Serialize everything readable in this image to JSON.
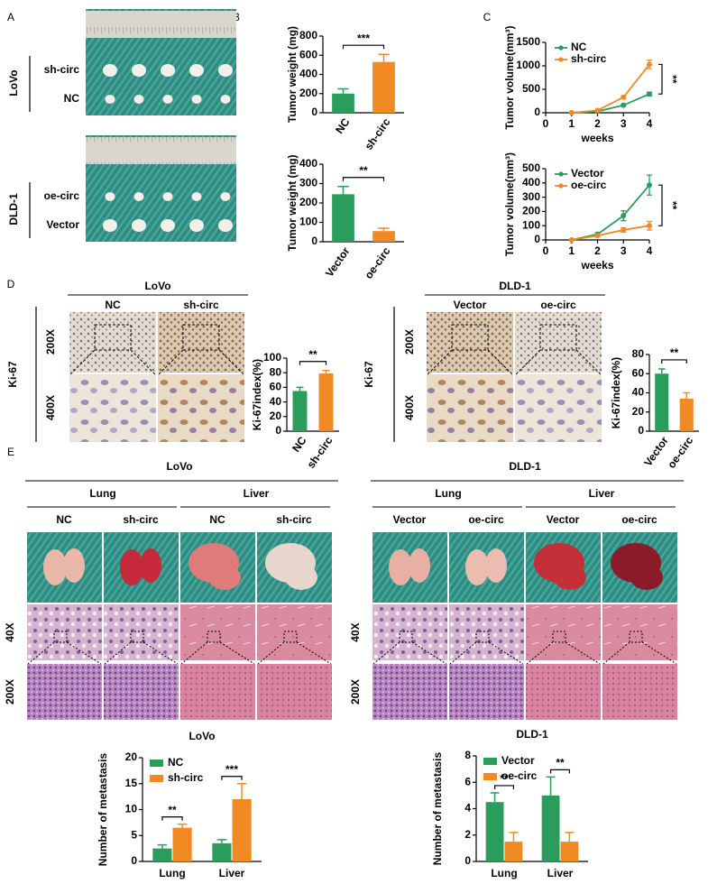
{
  "panel_labels": [
    "A",
    "B",
    "C",
    "D",
    "E"
  ],
  "panel_a": [
    {
      "line": "LoVo",
      "groups": [
        "sh-circ",
        "NC"
      ]
    },
    {
      "line": "DLD-1",
      "groups": [
        "oe-circ",
        "Vector"
      ]
    }
  ],
  "panel_d": [
    {
      "line": "LoVo",
      "groups": [
        "NC",
        "sh-circ"
      ],
      "stain": "Ki-67",
      "magnifications": [
        "200X",
        "400X"
      ]
    },
    {
      "line": "DLD-1",
      "groups": [
        "Vector",
        "oe-circ"
      ],
      "stain": "Ki-67",
      "magnifications": [
        "200X",
        "400X"
      ]
    }
  ],
  "panel_e": [
    {
      "line": "LoVo",
      "organs": [
        {
          "name": "Lung",
          "groups": [
            "NC",
            "sh-circ"
          ]
        },
        {
          "name": "Liver",
          "groups": [
            "NC",
            "sh-circ"
          ]
        }
      ],
      "magnifications": [
        "40X",
        "200X"
      ]
    },
    {
      "line": "DLD-1",
      "organs": [
        {
          "name": "Lung",
          "groups": [
            "Vector",
            "oe-circ"
          ]
        },
        {
          "name": "Liver",
          "groups": [
            "Vector",
            "oe-circ"
          ]
        }
      ],
      "magnifications": [
        "40X",
        "200X"
      ]
    }
  ],
  "chart_data": [
    {
      "type": "bar",
      "ylabel": "Tumor weight (mg)",
      "categories": [
        "NC",
        "sh-circ"
      ],
      "values": [
        200,
        530
      ],
      "errors": [
        50,
        80
      ],
      "colors": [
        "#2a9d5c",
        "#f28a24"
      ],
      "ylim": [
        0,
        800
      ],
      "yticks": [
        0,
        200,
        400,
        600,
        800
      ],
      "significance": "***"
    },
    {
      "type": "bar",
      "ylabel": "Tumor weight (mg)",
      "categories": [
        "Vector",
        "oe-circ"
      ],
      "values": [
        245,
        55
      ],
      "errors": [
        40,
        15
      ],
      "colors": [
        "#2a9d5c",
        "#f28a24"
      ],
      "ylim": [
        0,
        400
      ],
      "yticks": [
        0,
        100,
        200,
        300,
        400
      ],
      "significance": "**"
    },
    {
      "type": "line",
      "ylabel": "Tumor volume(mm³)",
      "xlabel": "weeks",
      "x": [
        1,
        2,
        3,
        4
      ],
      "xlim": [
        0,
        4
      ],
      "xticks": [
        0,
        1,
        2,
        3,
        4
      ],
      "ylim": [
        0,
        1500
      ],
      "yticks": [
        0,
        500,
        1000,
        1500
      ],
      "series": [
        {
          "name": "NC",
          "color": "#2a9d5c",
          "values": [
            0,
            30,
            160,
            400
          ],
          "errors": [
            0,
            5,
            20,
            40
          ]
        },
        {
          "name": "sh-circ",
          "color": "#f28a24",
          "values": [
            0,
            50,
            330,
            1030
          ],
          "errors": [
            0,
            10,
            30,
            90
          ]
        }
      ],
      "significance": "**"
    },
    {
      "type": "line",
      "ylabel": "Tumor volume(mm³)",
      "xlabel": "weeks",
      "x": [
        1,
        2,
        3,
        4
      ],
      "xlim": [
        0,
        4
      ],
      "xticks": [
        0,
        1,
        2,
        3,
        4
      ],
      "ylim": [
        0,
        500
      ],
      "yticks": [
        0,
        100,
        200,
        300,
        400,
        500
      ],
      "series": [
        {
          "name": "Vector",
          "color": "#2a9d5c",
          "values": [
            0,
            40,
            170,
            385
          ],
          "errors": [
            0,
            10,
            35,
            70
          ]
        },
        {
          "name": "oe-circ",
          "color": "#f28a24",
          "values": [
            0,
            30,
            70,
            100
          ],
          "errors": [
            0,
            8,
            15,
            30
          ]
        }
      ],
      "significance": "**"
    },
    {
      "type": "bar",
      "ylabel": "Ki-67index(%)",
      "categories": [
        "NC",
        "sh-circ"
      ],
      "values": [
        55,
        79
      ],
      "errors": [
        5,
        4
      ],
      "colors": [
        "#2a9d5c",
        "#f28a24"
      ],
      "ylim": [
        0,
        100
      ],
      "yticks": [
        0,
        20,
        40,
        60,
        80,
        100
      ],
      "significance": "**"
    },
    {
      "type": "bar",
      "ylabel": "Ki-67index(%)",
      "categories": [
        "Vector",
        "oe-circ"
      ],
      "values": [
        60,
        34
      ],
      "errors": [
        5,
        6
      ],
      "colors": [
        "#2a9d5c",
        "#f28a24"
      ],
      "ylim": [
        0,
        80
      ],
      "yticks": [
        0,
        20,
        40,
        60,
        80
      ],
      "significance": "**"
    },
    {
      "type": "bar",
      "title": "LoVo",
      "ylabel": "Number of metastasis",
      "categories": [
        "Lung",
        "Liver"
      ],
      "series": [
        {
          "name": "NC",
          "color": "#2a9d5c",
          "values": [
            2.5,
            3.5
          ],
          "errors": [
            0.7,
            0.7
          ]
        },
        {
          "name": "sh-circ",
          "color": "#f28a24",
          "values": [
            6.5,
            12
          ],
          "errors": [
            0.7,
            3
          ]
        }
      ],
      "ylim": [
        0,
        20
      ],
      "yticks": [
        0,
        5,
        10,
        15,
        20
      ],
      "significance": [
        "**",
        "***"
      ]
    },
    {
      "type": "bar",
      "title": "DLD-1",
      "ylabel": "Number of metastasis",
      "categories": [
        "Lung",
        "Liver"
      ],
      "series": [
        {
          "name": "Vector",
          "color": "#2a9d5c",
          "values": [
            4.5,
            5
          ],
          "errors": [
            0.7,
            1.4
          ]
        },
        {
          "name": "oe-circ",
          "color": "#f28a24",
          "values": [
            1.5,
            1.5
          ],
          "errors": [
            0.7,
            0.7
          ]
        }
      ],
      "ylim": [
        0,
        8
      ],
      "yticks": [
        0,
        2,
        4,
        6,
        8
      ],
      "significance": [
        "**",
        "**"
      ]
    }
  ]
}
